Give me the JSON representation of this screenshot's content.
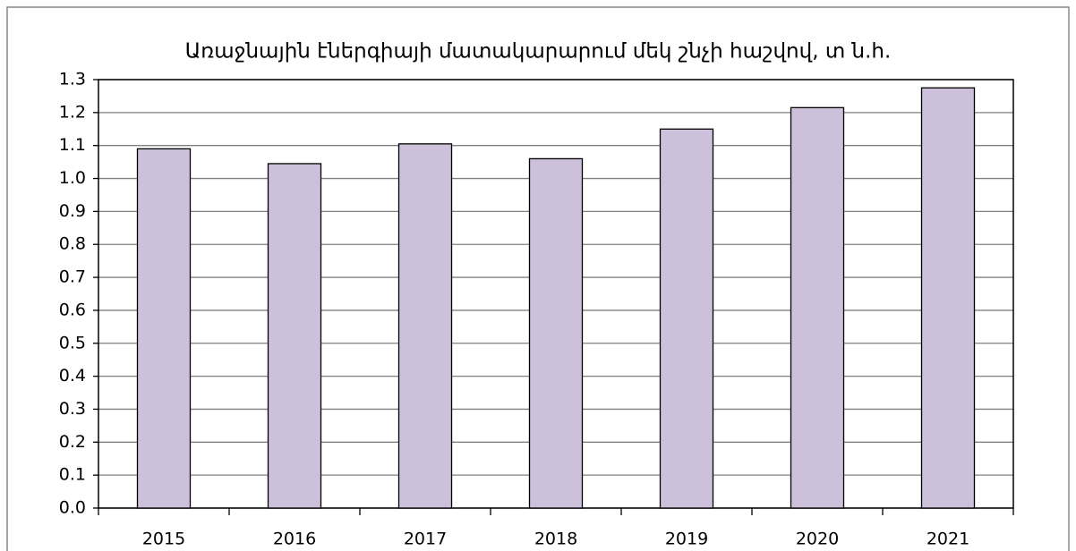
{
  "chart_data": {
    "type": "bar",
    "title": "Առաջնային էներգիայի մատակարարում մեկ շնչի հաշվով, տ ն.հ.",
    "categories": [
      "2015",
      "2016",
      "2017",
      "2018",
      "2019",
      "2020",
      "2021"
    ],
    "values": [
      1.09,
      1.045,
      1.105,
      1.06,
      1.15,
      1.215,
      1.275
    ],
    "color": "#ccc0da",
    "ylim": [
      0,
      1.3
    ],
    "yticks": [
      {
        "value": 0,
        "label": "0.0"
      },
      0.1,
      0.2,
      0.3,
      0.4,
      0.5,
      0.6,
      0.7,
      0.8,
      0.9,
      {
        "value": 1,
        "label": "1.0"
      },
      1.1,
      1.2,
      1.3
    ],
    "grid": true
  }
}
